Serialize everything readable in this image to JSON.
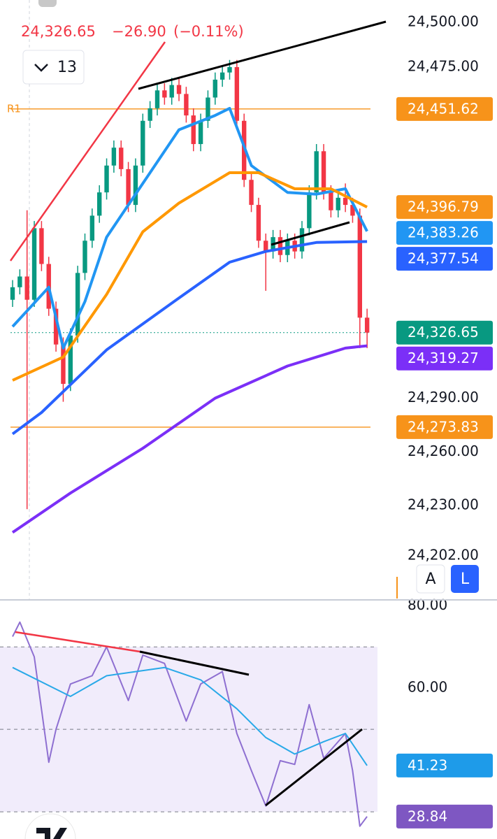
{
  "header": {
    "price": "24,326.65",
    "change": "−26.90",
    "change_pct": "(−0.11%)"
  },
  "interval_button": "13",
  "scale_buttons": [
    "A",
    "L"
  ],
  "chart_data": [
    {
      "type": "candlestick",
      "ylim": [
        24177.3,
        24512.5
      ],
      "yticks": [
        {
          "value": 24500,
          "label": "24,500.00"
        },
        {
          "value": 24475,
          "label": "24,475.00"
        },
        {
          "value": 24290,
          "label": "24,290.00"
        },
        {
          "value": 24260,
          "label": "24,260.00"
        },
        {
          "value": 24230,
          "label": "24,230.00"
        },
        {
          "value": 24202,
          "label": "24,202.00"
        }
      ],
      "up_color": "#089981",
      "down_color": "#f23645",
      "open": [
        24345,
        24352,
        24358,
        24345,
        24385,
        24365,
        24340,
        24320,
        24298,
        24325,
        24360,
        24378,
        24392,
        24405,
        24420,
        24430,
        24418,
        24398,
        24420,
        24445,
        24452,
        24462,
        24458,
        24465,
        24460,
        24448,
        24432,
        24445,
        24458,
        24468,
        24472,
        24475,
        24445,
        24412,
        24398,
        24378,
        24372,
        24380,
        24370,
        24378,
        24372,
        24385,
        24405,
        24428,
        24405,
        24395,
        24402,
        24398,
        24392,
        24335
      ],
      "high": [
        24356,
        24362,
        24395,
        24389,
        24389,
        24369,
        24344,
        24324,
        24329,
        24364,
        24382,
        24396,
        24409,
        24424,
        24434,
        24434,
        24422,
        24424,
        24449,
        24456,
        24466,
        24466,
        24469,
        24469,
        24464,
        24452,
        24449,
        24462,
        24472,
        24476,
        24479,
        24479,
        24449,
        24416,
        24402,
        24382,
        24384,
        24384,
        24382,
        24382,
        24389,
        24409,
        24432,
        24432,
        24409,
        24406,
        24410,
        24402,
        24396,
        24340
      ],
      "low": [
        24341,
        24348,
        24228,
        24341,
        24361,
        24336,
        24316,
        24288,
        24294,
        24321,
        24356,
        24374,
        24388,
        24401,
        24416,
        24414,
        24394,
        24394,
        24416,
        24441,
        24448,
        24454,
        24454,
        24456,
        24444,
        24428,
        24428,
        24441,
        24454,
        24464,
        24468,
        24441,
        24408,
        24394,
        24374,
        24350,
        24368,
        24366,
        24366,
        24368,
        24368,
        24381,
        24401,
        24401,
        24391,
        24391,
        24394,
        24388,
        24318,
        24318
      ],
      "close": [
        24352,
        24358,
        24345,
        24385,
        24365,
        24340,
        24320,
        24298,
        24325,
        24360,
        24378,
        24392,
        24405,
        24420,
        24430,
        24418,
        24398,
        24420,
        24445,
        24452,
        24462,
        24458,
        24465,
        24460,
        24448,
        24432,
        24445,
        24458,
        24468,
        24472,
        24475,
        24445,
        24412,
        24398,
        24378,
        24372,
        24380,
        24370,
        24378,
        24372,
        24385,
        24405,
        24428,
        24405,
        24395,
        24402,
        24398,
        24392,
        24335,
        24326.65
      ],
      "series": [
        {
          "color": "#2196f3",
          "x": [
            0,
            5,
            7,
            10,
            13,
            18,
            23,
            28,
            30,
            33,
            38,
            42,
            46,
            49
          ],
          "values": [
            24330,
            24352,
            24318,
            24344,
            24380,
            24410,
            24440,
            24448,
            24452,
            24420,
            24405,
            24404,
            24407,
            24383.26
          ]
        },
        {
          "color": "#ff9800",
          "x": [
            0,
            7,
            13,
            18,
            23,
            30,
            34,
            39,
            44,
            49
          ],
          "values": [
            24300,
            24313,
            24348,
            24383,
            24399,
            24416,
            24416,
            24407,
            24407,
            24396.79
          ]
        },
        {
          "color": "#2962ff",
          "x": [
            0,
            4,
            13,
            23,
            30,
            35,
            42,
            49
          ],
          "values": [
            24270,
            24282,
            24317,
            24346,
            24366,
            24372,
            24377,
            24377.54
          ]
        },
        {
          "color": "#7b2ff7",
          "x": [
            0,
            8,
            18,
            28,
            38,
            46,
            49
          ],
          "values": [
            24215,
            24237,
            24262,
            24290,
            24308,
            24318,
            24319.27
          ]
        }
      ],
      "levels": [
        {
          "value": 24451.62,
          "color": "#f7931a",
          "label": "R1"
        },
        {
          "value": 24273.83,
          "color": "#f7931a"
        }
      ],
      "price_labels": [
        {
          "value": 24451.62,
          "label": "24,451.62",
          "color": "#f7931a"
        },
        {
          "value": 24396.79,
          "label": "24,396.79",
          "color": "#f7931a"
        },
        {
          "value": 24383.26,
          "label": "24,383.26",
          "color": "#2196f3"
        },
        {
          "value": 24377.54,
          "label": "24,377.54",
          "color": "#2962ff"
        },
        {
          "value": 24326.65,
          "label": "24,326.65",
          "color": "#089981"
        },
        {
          "value": 24319.27,
          "label": "24,319.27",
          "color": "#7b2ff7"
        },
        {
          "value": 24273.83,
          "label": "24,273.83",
          "color": "#f7931a"
        }
      ]
    },
    {
      "type": "line",
      "ylim": [
        23.4,
        81.4
      ],
      "yticks": [
        {
          "value": 80,
          "label": "80.00"
        },
        {
          "value": 60,
          "label": "60.00"
        }
      ],
      "band": [
        30,
        70
      ],
      "levels": [
        70,
        50,
        30
      ],
      "series": [
        {
          "color": "#8e6fd1",
          "x": [
            0,
            1,
            3,
            5,
            6,
            8,
            11,
            13,
            16,
            18,
            21,
            24,
            26,
            29,
            31,
            33,
            35,
            37,
            39,
            41,
            43,
            46,
            47,
            48,
            49
          ],
          "values": [
            72.5,
            76,
            67.6,
            42,
            50,
            61,
            63,
            70,
            57,
            68,
            66,
            52,
            61,
            64,
            49,
            40,
            31.4,
            42.4,
            41.5,
            56,
            43,
            49,
            40,
            26.5,
            28.84
          ]
        },
        {
          "color": "#29a9e8",
          "x": [
            0,
            8,
            13,
            21,
            26,
            31,
            35,
            39,
            43,
            46,
            49
          ],
          "values": [
            65,
            58,
            63,
            65,
            62,
            55,
            48,
            44,
            47,
            49,
            41.23
          ]
        }
      ],
      "price_labels": [
        {
          "value": 41.23,
          "label": "41.23",
          "color": "#1e9be9"
        },
        {
          "value": 28.84,
          "label": "28.84",
          "color": "#7e57c2"
        }
      ]
    }
  ]
}
